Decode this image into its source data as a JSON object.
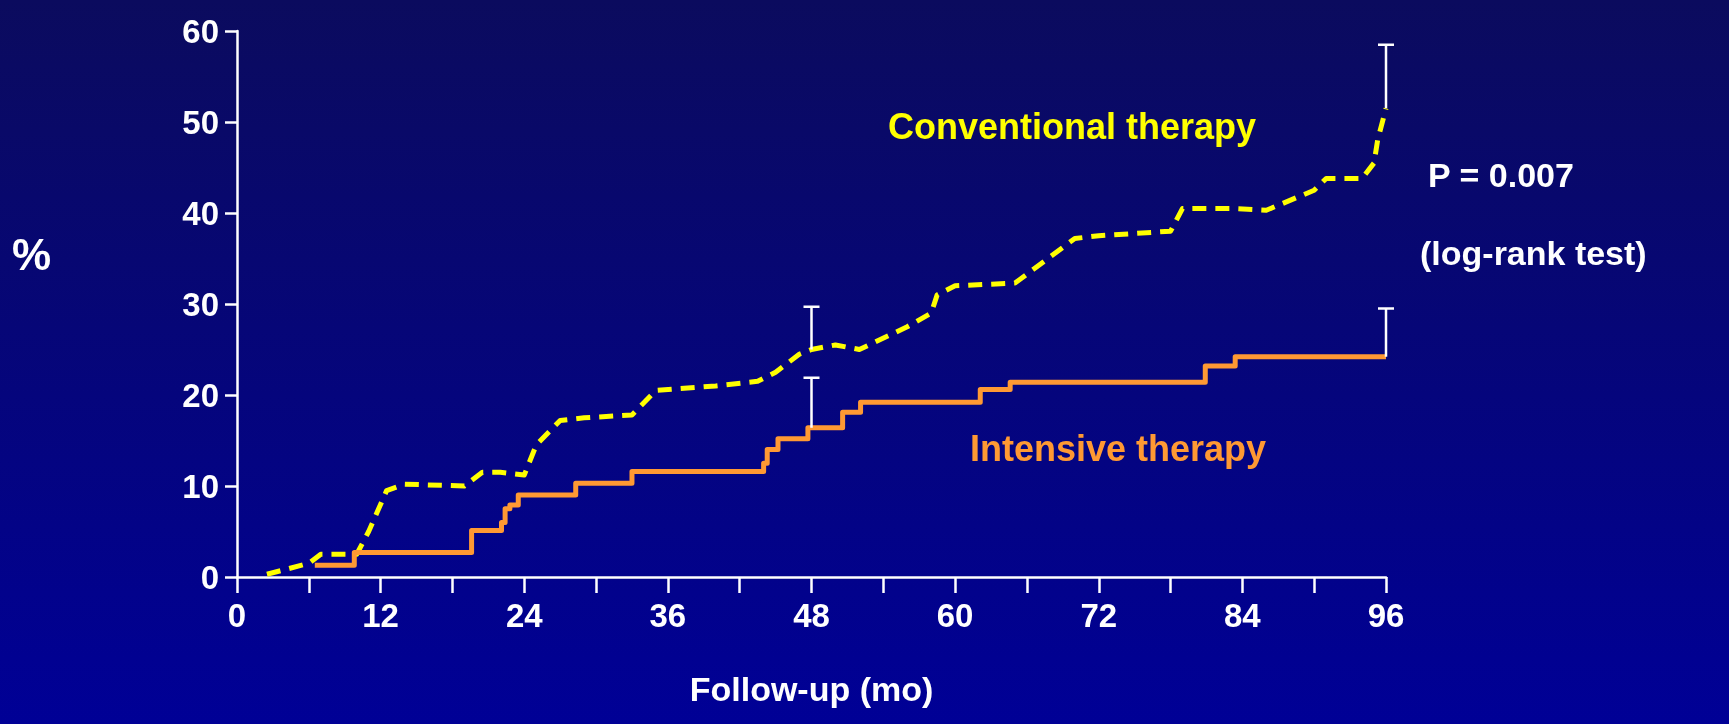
{
  "chart_data": {
    "type": "line",
    "xlabel": "Follow-up (mo)",
    "ylabel": "%",
    "annotations": [
      "P = 0.007",
      "(log-rank test)"
    ],
    "xlim": [
      0,
      96
    ],
    "xticks": [
      0,
      {
        "value": 6,
        "label": null
      },
      12,
      {
        "value": 18,
        "label": null
      },
      24,
      {
        "value": 30,
        "label": null
      },
      36,
      {
        "value": 42,
        "label": null
      },
      48,
      {
        "value": 54,
        "label": null
      },
      60,
      {
        "value": 66,
        "label": null
      },
      72,
      {
        "value": 78,
        "label": null
      },
      84,
      {
        "value": 90,
        "label": null
      },
      96
    ],
    "ylim": [
      0,
      60
    ],
    "yticks": [
      0,
      10,
      20,
      30,
      40,
      50,
      60
    ],
    "grid": false,
    "legend": false,
    "marker": "none",
    "series": [
      {
        "name": "Conventional therapy",
        "color": "#ffff00",
        "line_style": "dashed",
        "x": [
          2.5,
          6,
          7,
          10,
          11,
          12.5,
          14,
          19,
          20.5,
          22,
          24,
          25,
          27,
          29,
          33,
          35,
          40,
          43.5,
          45,
          47,
          48,
          50,
          52,
          56,
          58,
          58.5,
          60,
          65,
          70,
          72,
          78,
          79,
          83,
          86,
          90,
          91,
          94,
          95,
          95.3,
          96
        ],
        "values": [
          0.3,
          1.5,
          2.5,
          2.5,
          5,
          9.5,
          10.2,
          10,
          11.5,
          11.5,
          11.2,
          14.5,
          17.2,
          17.5,
          17.8,
          20.5,
          21,
          21.5,
          22.5,
          24.5,
          25,
          25.5,
          25,
          27.5,
          29,
          31,
          32,
          32.3,
          37.2,
          37.5,
          38,
          40.5,
          40.5,
          40.3,
          42.5,
          43.8,
          43.8,
          45.5,
          48,
          51.5
        ],
        "errors": [
          null,
          null,
          null,
          null,
          null,
          null,
          null,
          null,
          null,
          null,
          null,
          null,
          null,
          null,
          null,
          null,
          null,
          null,
          null,
          null,
          [
            25,
            29.7
          ],
          null,
          null,
          null,
          null,
          null,
          null,
          null,
          null,
          null,
          null,
          null,
          null,
          null,
          null,
          null,
          null,
          null,
          null,
          [
            51.5,
            58.5
          ]
        ]
      },
      {
        "name": "Intensive therapy",
        "color": "#ff9933",
        "type": "step",
        "line_style": "solid",
        "x": [
          6.5,
          9.8,
          19.6,
          22.1,
          22.4,
          22.8,
          23.5,
          28.3,
          33,
          44,
          44.3,
          45.2,
          47.7,
          48,
          50.6,
          52.1,
          62.1,
          64.6,
          80.9,
          83.4,
          96
        ],
        "values": [
          1.3,
          2.7,
          5.1,
          6,
          7.5,
          7.9,
          9,
          10.3,
          11.6,
          12.5,
          14,
          15.2,
          16.4,
          16.4,
          18.1,
          19.2,
          20.6,
          21.4,
          23.2,
          24.2,
          24.2
        ],
        "errors": [
          null,
          null,
          null,
          null,
          null,
          null,
          null,
          null,
          null,
          null,
          null,
          null,
          null,
          [
            16.4,
            21.9
          ],
          null,
          null,
          null,
          null,
          null,
          null,
          [
            24.2,
            29.5
          ]
        ]
      }
    ]
  }
}
